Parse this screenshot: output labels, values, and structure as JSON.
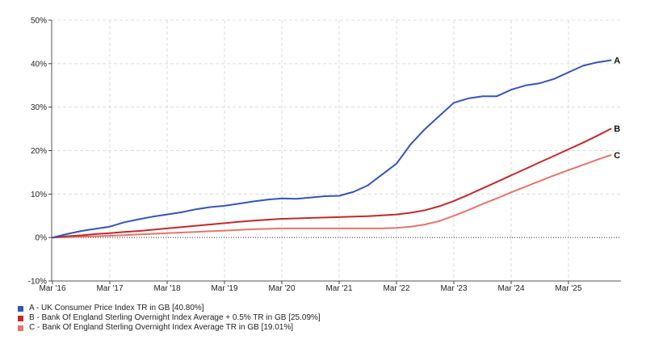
{
  "chart_data": {
    "type": "line",
    "x_tick_labels": [
      "Mar '16",
      "Mar '17",
      "Mar '18",
      "Mar '19",
      "Mar '20",
      "Mar '21",
      "Mar '22",
      "Mar '23",
      "Mar '24",
      "Mar '25"
    ],
    "x": [
      "2016-03",
      "2016-06",
      "2016-09",
      "2016-12",
      "2017-03",
      "2017-06",
      "2017-09",
      "2017-12",
      "2018-03",
      "2018-06",
      "2018-09",
      "2018-12",
      "2019-03",
      "2019-06",
      "2019-09",
      "2019-12",
      "2020-03",
      "2020-06",
      "2020-09",
      "2020-12",
      "2021-03",
      "2021-06",
      "2021-09",
      "2021-12",
      "2022-03",
      "2022-06",
      "2022-09",
      "2022-12",
      "2023-03",
      "2023-06",
      "2023-09",
      "2023-12",
      "2024-03",
      "2024-06",
      "2024-09",
      "2024-12",
      "2025-03",
      "2025-06",
      "2025-09",
      "2025-12"
    ],
    "y_tick_labels": [
      "50%",
      "40%",
      "30%",
      "20%",
      "10%",
      "0%",
      "-10%"
    ],
    "y_ticks": [
      50,
      40,
      30,
      20,
      10,
      0,
      -10
    ],
    "ylim": [
      -10,
      50
    ],
    "grid": true,
    "legend_position": "bottom-left",
    "series": [
      {
        "name": "A - UK Consumer Price Index TR in GB [40.80%]",
        "end_label": "A",
        "color": "#3355bb",
        "values": [
          0.0,
          0.8,
          1.5,
          2.0,
          2.5,
          3.5,
          4.2,
          4.8,
          5.3,
          5.8,
          6.5,
          7.0,
          7.3,
          7.8,
          8.3,
          8.7,
          9.0,
          8.9,
          9.2,
          9.5,
          9.6,
          10.5,
          12.0,
          14.5,
          17.0,
          21.5,
          25.0,
          28.0,
          31.0,
          32.0,
          32.5,
          32.5,
          34.0,
          35.0,
          35.5,
          36.5,
          38.0,
          39.5,
          40.3,
          40.8
        ]
      },
      {
        "name": "B - Bank Of England Sterling Overnight Index Average + 0.5% TR in GB [25.09%]",
        "end_label": "B",
        "color": "#c62828",
        "values": [
          0.0,
          0.3,
          0.5,
          0.8,
          1.0,
          1.3,
          1.5,
          1.8,
          2.1,
          2.4,
          2.7,
          3.0,
          3.3,
          3.6,
          3.9,
          4.1,
          4.3,
          4.4,
          4.5,
          4.6,
          4.7,
          4.8,
          4.9,
          5.1,
          5.3,
          5.7,
          6.3,
          7.2,
          8.4,
          9.8,
          11.3,
          12.8,
          14.3,
          15.8,
          17.3,
          18.8,
          20.3,
          21.8,
          23.4,
          25.09
        ]
      },
      {
        "name": "C - Bank Of England Sterling Overnight Index Average TR in GB [19.01%]",
        "end_label": "C",
        "color": "#e8736a",
        "values": [
          0.0,
          0.1,
          0.2,
          0.3,
          0.4,
          0.55,
          0.7,
          0.85,
          1.0,
          1.15,
          1.3,
          1.45,
          1.6,
          1.75,
          1.9,
          2.0,
          2.1,
          2.1,
          2.1,
          2.1,
          2.1,
          2.1,
          2.1,
          2.1,
          2.2,
          2.5,
          3.0,
          3.8,
          5.0,
          6.3,
          7.7,
          9.0,
          10.4,
          11.7,
          13.0,
          14.3,
          15.5,
          16.7,
          17.9,
          19.01
        ]
      }
    ]
  }
}
